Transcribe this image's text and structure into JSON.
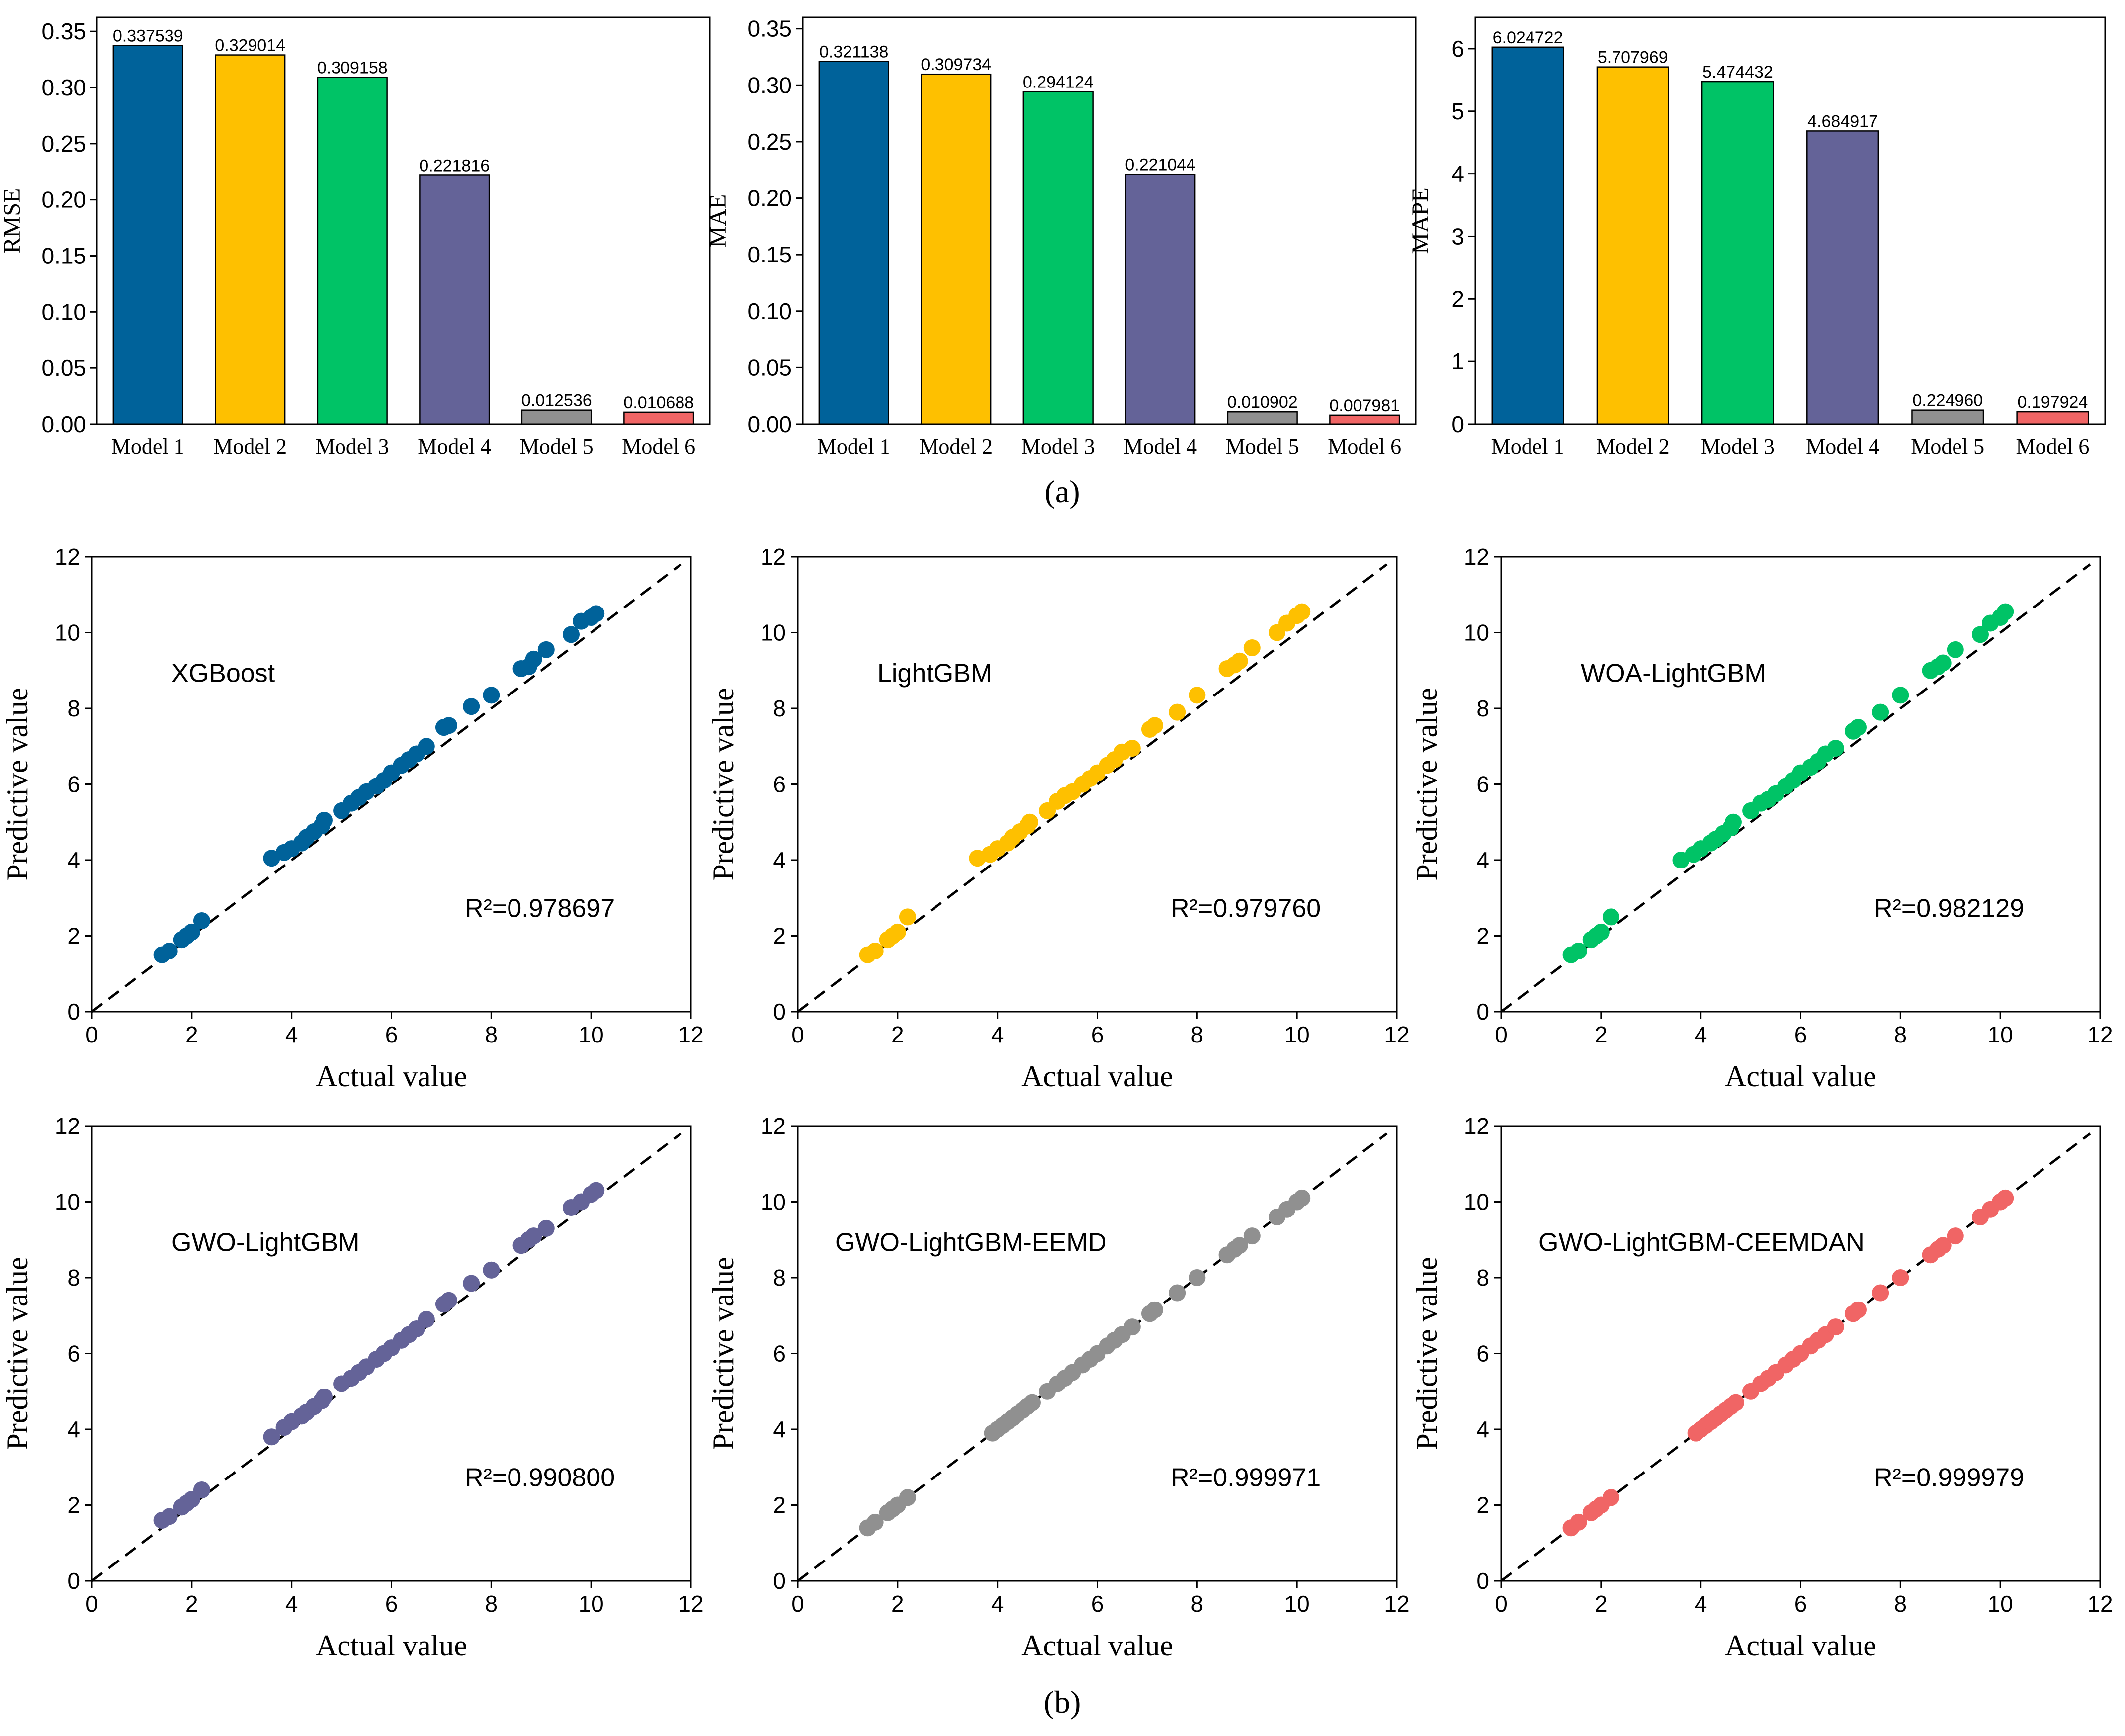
{
  "panel_labels": {
    "a": "(a)",
    "b": "(b)"
  },
  "colors": {
    "model_1": "#00629a",
    "model_2": "#fec000",
    "model_3": "#00c366",
    "model_4": "#646398",
    "model_5": "#909090",
    "model_6": "#f06565",
    "axis": "#000000",
    "identity_line": "#000000"
  },
  "chart_data": [
    {
      "type": "bar",
      "ylabel": "RMSE",
      "xlabel": "",
      "categories": [
        "Model 1",
        "Model 2",
        "Model 3",
        "Model 4",
        "Model 5",
        "Model 6"
      ],
      "values": [
        0.337539,
        0.329014,
        0.309158,
        0.221816,
        0.012536,
        0.010688
      ],
      "value_labels": [
        "0.337539",
        "0.329014",
        "0.309158",
        "0.221816",
        "0.012536",
        "0.010688"
      ],
      "ylim": [
        0,
        0.3625
      ],
      "yticks": [
        0.0,
        0.05,
        0.1,
        0.15,
        0.2,
        0.25,
        0.3,
        0.35
      ],
      "ytick_labels": [
        "0.00",
        "0.05",
        "0.10",
        "0.15",
        "0.20",
        "0.25",
        "0.30",
        "0.35"
      ]
    },
    {
      "type": "bar",
      "ylabel": "MAE",
      "xlabel": "",
      "categories": [
        "Model 1",
        "Model 2",
        "Model 3",
        "Model 4",
        "Model 5",
        "Model 6"
      ],
      "values": [
        0.321138,
        0.309734,
        0.294124,
        0.221044,
        0.010902,
        0.007981
      ],
      "value_labels": [
        "0.321138",
        "0.309734",
        "0.294124",
        "0.221044",
        "0.010902",
        "0.007981"
      ],
      "ylim": [
        0,
        0.36
      ],
      "yticks": [
        0.0,
        0.05,
        0.1,
        0.15,
        0.2,
        0.25,
        0.3,
        0.35
      ],
      "ytick_labels": [
        "0.00",
        "0.05",
        "0.10",
        "0.15",
        "0.20",
        "0.25",
        "0.30",
        "0.35"
      ]
    },
    {
      "type": "bar",
      "ylabel": "MAPE",
      "xlabel": "",
      "categories": [
        "Model 1",
        "Model 2",
        "Model 3",
        "Model 4",
        "Model 5",
        "Model 6"
      ],
      "values": [
        6.024722,
        5.707969,
        5.474432,
        4.684917,
        0.22496,
        0.197924
      ],
      "value_labels": [
        "6.024722",
        "5.707969",
        "5.474432",
        "4.684917",
        "0.224960",
        "0.197924"
      ],
      "ylim": [
        0,
        6.5
      ],
      "yticks": [
        0,
        1,
        2,
        3,
        4,
        5,
        6
      ],
      "ytick_labels": [
        "0",
        "1",
        "2",
        "3",
        "4",
        "5",
        "6"
      ]
    },
    {
      "type": "scatter",
      "title": "XGBoost",
      "annotation": "R²=0.978697",
      "xlabel": "Actual value",
      "ylabel": "Predictive value",
      "xlim": [
        0,
        12
      ],
      "ylim": [
        0,
        12
      ],
      "ticks": [
        0,
        2,
        4,
        6,
        8,
        10,
        12
      ],
      "tick_labels": [
        "0",
        "2",
        "4",
        "6",
        "8",
        "10",
        "12"
      ],
      "x": [
        1.4,
        1.55,
        1.8,
        1.9,
        2.0,
        2.2,
        3.6,
        3.85,
        4.0,
        4.2,
        4.3,
        4.45,
        4.6,
        4.65,
        5.0,
        5.2,
        5.35,
        5.5,
        5.7,
        5.85,
        6.0,
        6.2,
        6.35,
        6.5,
        6.7,
        7.05,
        7.15,
        7.6,
        8.0,
        8.6,
        8.75,
        8.85,
        9.1,
        9.6,
        9.8,
        10.0,
        10.1
      ],
      "y": [
        1.5,
        1.6,
        1.9,
        2.0,
        2.1,
        2.4,
        4.05,
        4.2,
        4.3,
        4.45,
        4.6,
        4.75,
        4.9,
        5.05,
        5.3,
        5.5,
        5.65,
        5.8,
        5.95,
        6.1,
        6.3,
        6.5,
        6.65,
        6.8,
        7.0,
        7.5,
        7.55,
        8.05,
        8.35,
        9.05,
        9.1,
        9.3,
        9.55,
        9.95,
        10.3,
        10.4,
        10.5
      ]
    },
    {
      "type": "scatter",
      "title": "LightGBM",
      "annotation": "R²=0.979760",
      "xlabel": "Actual value",
      "ylabel": "Predictive value",
      "xlim": [
        0,
        12
      ],
      "ylim": [
        0,
        12
      ],
      "ticks": [
        0,
        2,
        4,
        6,
        8,
        10,
        12
      ],
      "tick_labels": [
        "0",
        "2",
        "4",
        "6",
        "8",
        "10",
        "12"
      ],
      "x": [
        1.4,
        1.55,
        1.8,
        1.9,
        2.0,
        2.2,
        3.6,
        3.85,
        4.0,
        4.2,
        4.3,
        4.45,
        4.6,
        4.65,
        5.0,
        5.2,
        5.35,
        5.5,
        5.7,
        5.85,
        6.0,
        6.2,
        6.35,
        6.5,
        6.7,
        7.05,
        7.15,
        7.6,
        8.0,
        8.6,
        8.75,
        8.85,
        9.1,
        9.6,
        9.8,
        10.0,
        10.1
      ],
      "y": [
        1.5,
        1.6,
        1.9,
        2.0,
        2.1,
        2.5,
        4.05,
        4.15,
        4.3,
        4.45,
        4.6,
        4.75,
        4.9,
        5.0,
        5.3,
        5.55,
        5.7,
        5.8,
        6.0,
        6.15,
        6.3,
        6.5,
        6.65,
        6.85,
        6.95,
        7.45,
        7.55,
        7.9,
        8.35,
        9.05,
        9.15,
        9.25,
        9.6,
        10.0,
        10.25,
        10.45,
        10.55
      ]
    },
    {
      "type": "scatter",
      "title": "WOA-LightGBM",
      "annotation": "R²=0.982129",
      "xlabel": "Actual value",
      "ylabel": "Predictive value",
      "xlim": [
        0,
        12
      ],
      "ylim": [
        0,
        12
      ],
      "ticks": [
        0,
        2,
        4,
        6,
        8,
        10,
        12
      ],
      "tick_labels": [
        "0",
        "2",
        "4",
        "6",
        "8",
        "10",
        "12"
      ],
      "x": [
        1.4,
        1.55,
        1.8,
        1.9,
        2.0,
        2.2,
        3.6,
        3.85,
        4.0,
        4.2,
        4.3,
        4.45,
        4.6,
        4.65,
        5.0,
        5.2,
        5.35,
        5.5,
        5.7,
        5.85,
        6.0,
        6.2,
        6.35,
        6.5,
        6.7,
        7.05,
        7.15,
        7.6,
        8.0,
        8.6,
        8.75,
        8.85,
        9.1,
        9.6,
        9.8,
        10.0,
        10.1
      ],
      "y": [
        1.5,
        1.6,
        1.9,
        2.0,
        2.1,
        2.5,
        4.0,
        4.15,
        4.3,
        4.45,
        4.55,
        4.7,
        4.85,
        5.0,
        5.3,
        5.5,
        5.6,
        5.75,
        5.95,
        6.1,
        6.3,
        6.45,
        6.6,
        6.8,
        6.95,
        7.4,
        7.5,
        7.9,
        8.35,
        9.0,
        9.1,
        9.2,
        9.55,
        9.95,
        10.25,
        10.4,
        10.55
      ]
    },
    {
      "type": "scatter",
      "title": "GWO-LightGBM",
      "annotation": "R²=0.990800",
      "xlabel": "Actual value",
      "ylabel": "Predictive value",
      "xlim": [
        0,
        12
      ],
      "ylim": [
        0,
        12
      ],
      "ticks": [
        0,
        2,
        4,
        6,
        8,
        10,
        12
      ],
      "tick_labels": [
        "0",
        "2",
        "4",
        "6",
        "8",
        "10",
        "12"
      ],
      "x": [
        1.4,
        1.55,
        1.8,
        1.9,
        2.0,
        2.2,
        3.6,
        3.85,
        4.0,
        4.2,
        4.3,
        4.45,
        4.6,
        4.65,
        5.0,
        5.2,
        5.35,
        5.5,
        5.7,
        5.85,
        6.0,
        6.2,
        6.35,
        6.5,
        6.7,
        7.05,
        7.15,
        7.6,
        8.0,
        8.6,
        8.75,
        8.85,
        9.1,
        9.6,
        9.8,
        10.0,
        10.1
      ],
      "y": [
        1.6,
        1.7,
        1.95,
        2.05,
        2.15,
        2.4,
        3.8,
        4.05,
        4.2,
        4.35,
        4.45,
        4.6,
        4.75,
        4.85,
        5.2,
        5.35,
        5.5,
        5.65,
        5.85,
        6.0,
        6.15,
        6.35,
        6.5,
        6.65,
        6.9,
        7.3,
        7.4,
        7.85,
        8.2,
        8.85,
        9.0,
        9.1,
        9.3,
        9.85,
        10.0,
        10.2,
        10.3
      ]
    },
    {
      "type": "scatter",
      "title": "GWO-LightGBM-EEMD",
      "annotation": "R²=0.999971",
      "xlabel": "Actual value",
      "ylabel": "Predictive value",
      "xlim": [
        0,
        12
      ],
      "ylim": [
        0,
        12
      ],
      "ticks": [
        0,
        2,
        4,
        6,
        8,
        10,
        12
      ],
      "tick_labels": [
        "0",
        "2",
        "4",
        "6",
        "8",
        "10",
        "12"
      ],
      "x": [
        1.4,
        1.55,
        1.8,
        1.9,
        2.0,
        2.2,
        3.9,
        4.0,
        4.1,
        4.2,
        4.3,
        4.4,
        4.5,
        4.6,
        4.7,
        5.0,
        5.2,
        5.35,
        5.5,
        5.7,
        5.85,
        6.0,
        6.2,
        6.35,
        6.5,
        6.7,
        7.05,
        7.15,
        7.6,
        8.0,
        8.6,
        8.75,
        8.85,
        9.1,
        9.6,
        9.8,
        10.0,
        10.1
      ],
      "y": [
        1.4,
        1.55,
        1.8,
        1.9,
        2.0,
        2.2,
        3.9,
        4.0,
        4.1,
        4.2,
        4.3,
        4.4,
        4.5,
        4.6,
        4.7,
        5.0,
        5.2,
        5.35,
        5.5,
        5.7,
        5.85,
        6.0,
        6.2,
        6.35,
        6.5,
        6.7,
        7.05,
        7.15,
        7.6,
        8.0,
        8.6,
        8.75,
        8.85,
        9.1,
        9.6,
        9.8,
        10.0,
        10.1
      ]
    },
    {
      "type": "scatter",
      "title": "GWO-LightGBM-CEEMDAN",
      "annotation": "R²=0.999979",
      "xlabel": "Actual value",
      "ylabel": "Predictive value",
      "xlim": [
        0,
        12
      ],
      "ylim": [
        0,
        12
      ],
      "ticks": [
        0,
        2,
        4,
        6,
        8,
        10,
        12
      ],
      "tick_labels": [
        "0",
        "2",
        "4",
        "6",
        "8",
        "10",
        "12"
      ],
      "x": [
        1.4,
        1.55,
        1.8,
        1.9,
        2.0,
        2.2,
        3.9,
        4.0,
        4.1,
        4.2,
        4.3,
        4.4,
        4.5,
        4.6,
        4.7,
        5.0,
        5.2,
        5.35,
        5.5,
        5.7,
        5.85,
        6.0,
        6.2,
        6.35,
        6.5,
        6.7,
        7.05,
        7.15,
        7.6,
        8.0,
        8.6,
        8.75,
        8.85,
        9.1,
        9.6,
        9.8,
        10.0,
        10.1
      ],
      "y": [
        1.4,
        1.55,
        1.8,
        1.9,
        2.0,
        2.2,
        3.9,
        4.0,
        4.1,
        4.2,
        4.3,
        4.4,
        4.5,
        4.6,
        4.7,
        5.0,
        5.2,
        5.35,
        5.5,
        5.7,
        5.85,
        6.0,
        6.2,
        6.35,
        6.5,
        6.7,
        7.05,
        7.15,
        7.6,
        8.0,
        8.6,
        8.75,
        8.85,
        9.1,
        9.6,
        9.8,
        10.0,
        10.1
      ]
    }
  ]
}
